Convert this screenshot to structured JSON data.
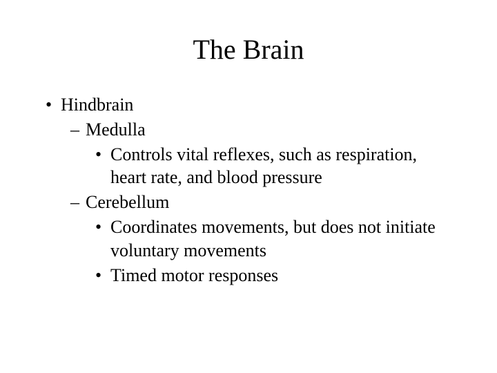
{
  "slide": {
    "title": "The Brain",
    "title_fontsize": 40,
    "body_fontsize": 26,
    "background_color": "#ffffff",
    "text_color": "#000000",
    "font_family": "Times New Roman",
    "outline": {
      "level1": [
        {
          "text": "Hindbrain",
          "level2": [
            {
              "text": "Medulla",
              "level3": [
                {
                  "text": "Controls vital reflexes, such as respiration, heart rate, and blood pressure"
                }
              ]
            },
            {
              "text": "Cerebellum",
              "level3": [
                {
                  "text": "Coordinates movements, but does not initiate voluntary movements"
                },
                {
                  "text": "Timed motor responses"
                }
              ]
            }
          ]
        }
      ]
    }
  }
}
